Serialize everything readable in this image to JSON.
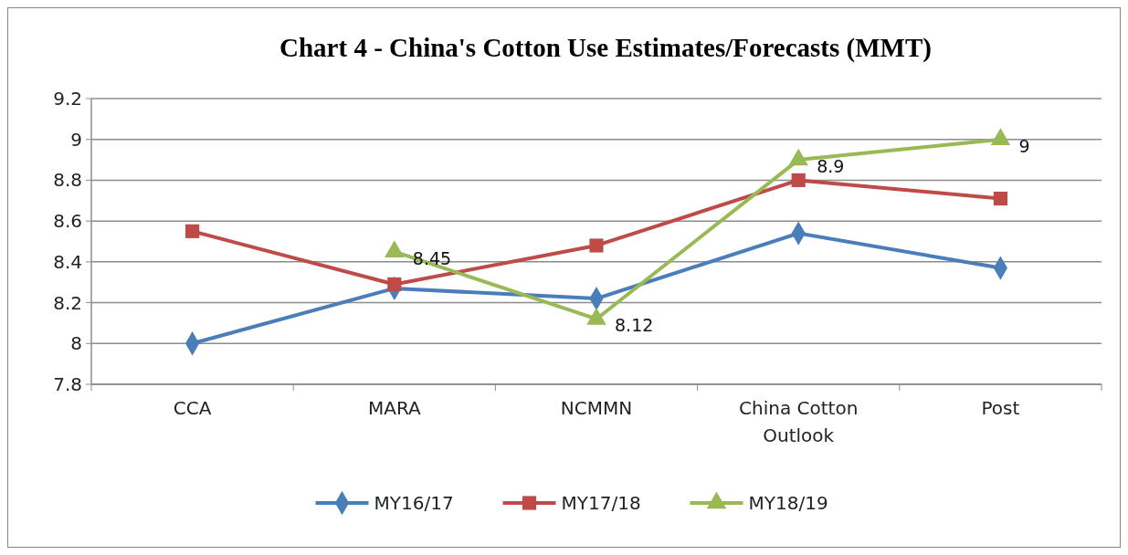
{
  "chart_data": {
    "type": "line",
    "title": "Chart  4 - China's  Cotton  Use Estimates/Forecasts (MMT)",
    "categories": [
      "CCA",
      "MARA",
      "NCMMN",
      "China Cotton Outlook",
      "Post"
    ],
    "series": [
      {
        "name": "MY16/17",
        "color": "#4a7ebb",
        "marker": "diamond",
        "values": [
          8.0,
          8.27,
          8.22,
          8.54,
          8.37
        ]
      },
      {
        "name": "MY17/18",
        "color": "#be4b48",
        "marker": "square",
        "values": [
          8.55,
          8.29,
          8.48,
          8.8,
          8.71
        ]
      },
      {
        "name": "MY18/19",
        "color": "#98b954",
        "marker": "triangle",
        "values": [
          null,
          8.45,
          8.12,
          8.9,
          9
        ],
        "value_labels": [
          null,
          "8.45",
          "8.12",
          "8.9",
          "9"
        ]
      }
    ],
    "ylim": [
      7.8,
      9.2
    ],
    "yticks": [
      7.8,
      8,
      8.2,
      8.4,
      8.6,
      8.8,
      9,
      9.2
    ],
    "grid": "y",
    "legend": "bottom"
  }
}
